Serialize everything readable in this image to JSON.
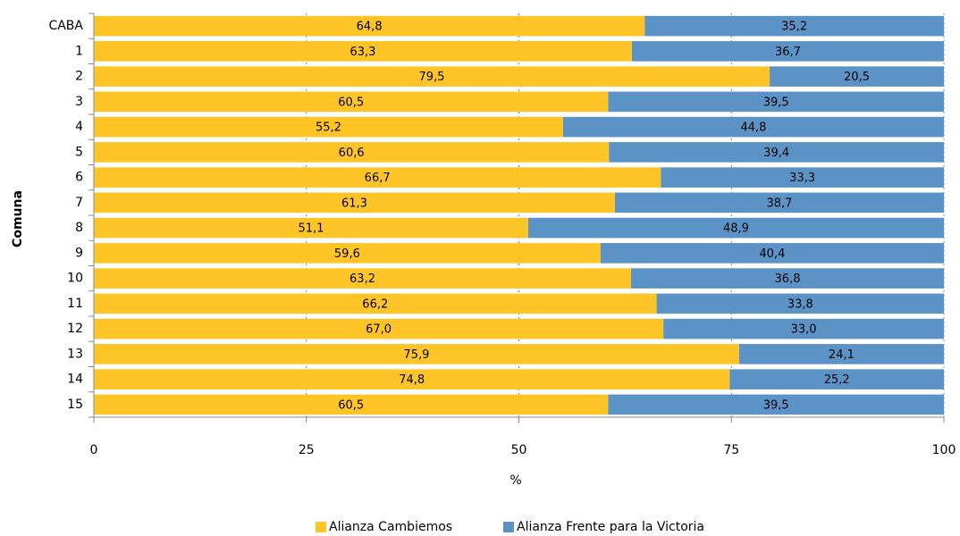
{
  "chart_data": {
    "type": "stacked-barh",
    "y_label": "Comuna",
    "x_label": "%",
    "categories": [
      "CABA",
      "1",
      "2",
      "3",
      "4",
      "5",
      "6",
      "7",
      "8",
      "9",
      "10",
      "11",
      "12",
      "13",
      "14",
      "15"
    ],
    "series": [
      {
        "name": "Alianza Cambiemos",
        "color": "#FFC425",
        "values": [
          64.8,
          63.3,
          79.5,
          60.5,
          55.2,
          60.6,
          66.7,
          61.3,
          51.1,
          59.6,
          63.2,
          66.2,
          67.0,
          75.9,
          74.8,
          60.5
        ],
        "value_labels": [
          "64,8",
          "63,3",
          "79,5",
          "60,5",
          "55,2",
          "60,6",
          "66,7",
          "61,3",
          "51,1",
          "59,6",
          "63,2",
          "66,2",
          "67,0",
          "75,9",
          "74,8",
          "60,5"
        ]
      },
      {
        "name": "Alianza Frente para la Victoria",
        "color": "#5B93C7",
        "values": [
          35.2,
          36.7,
          20.5,
          39.5,
          44.8,
          39.4,
          33.3,
          38.7,
          48.9,
          40.4,
          36.8,
          33.8,
          33.0,
          24.1,
          25.2,
          39.5
        ],
        "value_labels": [
          "35,2",
          "36,7",
          "20,5",
          "39,5",
          "44,8",
          "39,4",
          "33,3",
          "38,7",
          "48,9",
          "40,4",
          "36,8",
          "33,8",
          "33,0",
          "24,1",
          "25,2",
          "39,5"
        ]
      }
    ],
    "xlim": [
      0,
      100
    ],
    "xticks": [
      0,
      25,
      50,
      75,
      100
    ],
    "grid": true,
    "legend": "bottom"
  }
}
